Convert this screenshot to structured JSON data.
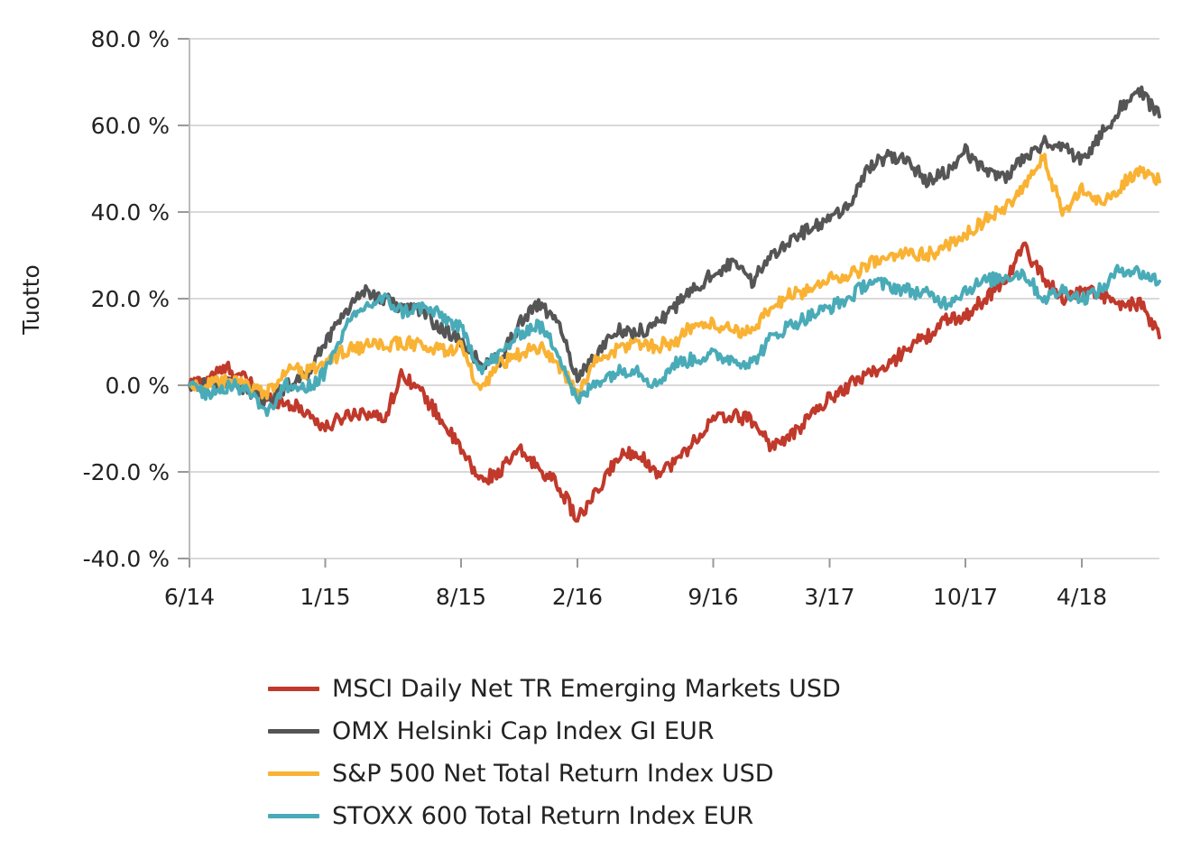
{
  "chart_data": {
    "type": "line",
    "title": "",
    "ylabel": "Tuotto",
    "xlabel": "",
    "ylim": [
      -40,
      80
    ],
    "y_ticks": [
      80,
      60,
      40,
      20,
      0,
      -20,
      -40
    ],
    "y_tick_labels": [
      "80.0 %",
      "60.0 %",
      "40.0 %",
      "20.0 %",
      "0.0 %",
      "-20.0 %",
      "-40.0 %"
    ],
    "x_ticks": [
      "6/14",
      "1/15",
      "8/15",
      "2/16",
      "9/16",
      "3/17",
      "10/17",
      "4/18"
    ],
    "x_tick_index": [
      0,
      7,
      14,
      20,
      27,
      33,
      40,
      46
    ],
    "x_end_index": 50,
    "x_range": [
      "6/14",
      "8/18"
    ],
    "grid": "horizontal",
    "legend_position": "bottom",
    "series": [
      {
        "name": "MSCI Daily Net TR Emerging Markets USD",
        "color": "#c0392b",
        "points": [
          [
            0,
            0
          ],
          [
            1,
            2
          ],
          [
            2,
            4
          ],
          [
            3,
            1
          ],
          [
            4,
            -3
          ],
          [
            5,
            -4
          ],
          [
            6,
            -6
          ],
          [
            7,
            -10
          ],
          [
            8,
            -7
          ],
          [
            9,
            -6
          ],
          [
            10,
            -8
          ],
          [
            11,
            3
          ],
          [
            12,
            -2
          ],
          [
            13,
            -8
          ],
          [
            14,
            -15
          ],
          [
            15,
            -22
          ],
          [
            16,
            -20
          ],
          [
            17,
            -15
          ],
          [
            18,
            -19
          ],
          [
            19,
            -23
          ],
          [
            20,
            -31
          ],
          [
            21,
            -25
          ],
          [
            22,
            -17
          ],
          [
            23,
            -15
          ],
          [
            24,
            -20
          ],
          [
            25,
            -18
          ],
          [
            26,
            -13
          ],
          [
            27,
            -8
          ],
          [
            28,
            -7
          ],
          [
            29,
            -8
          ],
          [
            30,
            -14
          ],
          [
            31,
            -12
          ],
          [
            32,
            -7
          ],
          [
            33,
            -3
          ],
          [
            34,
            0
          ],
          [
            35,
            3
          ],
          [
            36,
            4
          ],
          [
            37,
            9
          ],
          [
            38,
            11
          ],
          [
            39,
            15
          ],
          [
            40,
            16
          ],
          [
            41,
            20
          ],
          [
            42,
            24
          ],
          [
            43,
            32
          ],
          [
            44,
            25
          ],
          [
            45,
            20
          ],
          [
            46,
            22
          ],
          [
            47,
            21
          ],
          [
            48,
            18
          ],
          [
            49,
            19
          ],
          [
            50,
            11
          ]
        ]
      },
      {
        "name": "OMX Helsinki Cap Index GI EUR",
        "color": "#555555",
        "points": [
          [
            0,
            0
          ],
          [
            1,
            0
          ],
          [
            2,
            1
          ],
          [
            3,
            -1
          ],
          [
            4,
            -4
          ],
          [
            5,
            0
          ],
          [
            6,
            2
          ],
          [
            7,
            10
          ],
          [
            8,
            17
          ],
          [
            9,
            22
          ],
          [
            10,
            20
          ],
          [
            11,
            18
          ],
          [
            12,
            17
          ],
          [
            13,
            13
          ],
          [
            14,
            10
          ],
          [
            15,
            5
          ],
          [
            16,
            6
          ],
          [
            17,
            14
          ],
          [
            18,
            19
          ],
          [
            19,
            14
          ],
          [
            20,
            2
          ],
          [
            21,
            7
          ],
          [
            22,
            13
          ],
          [
            23,
            12
          ],
          [
            24,
            14
          ],
          [
            25,
            18
          ],
          [
            26,
            22
          ],
          [
            27,
            26
          ],
          [
            28,
            28
          ],
          [
            29,
            24
          ],
          [
            30,
            30
          ],
          [
            31,
            34
          ],
          [
            32,
            36
          ],
          [
            33,
            38
          ],
          [
            34,
            42
          ],
          [
            35,
            50
          ],
          [
            36,
            53
          ],
          [
            37,
            52
          ],
          [
            38,
            47
          ],
          [
            39,
            49
          ],
          [
            40,
            54
          ],
          [
            41,
            50
          ],
          [
            42,
            48
          ],
          [
            43,
            52
          ],
          [
            44,
            56
          ],
          [
            45,
            55
          ],
          [
            46,
            52
          ],
          [
            47,
            58
          ],
          [
            48,
            64
          ],
          [
            49,
            68
          ],
          [
            50,
            62
          ]
        ]
      },
      {
        "name": "S&P 500 Net Total Return Index USD",
        "color": "#f9b233",
        "points": [
          [
            0,
            0
          ],
          [
            1,
            0
          ],
          [
            2,
            1
          ],
          [
            3,
            0
          ],
          [
            4,
            -2
          ],
          [
            5,
            4
          ],
          [
            6,
            3
          ],
          [
            7,
            5
          ],
          [
            8,
            8
          ],
          [
            9,
            9
          ],
          [
            10,
            9
          ],
          [
            11,
            10
          ],
          [
            12,
            9
          ],
          [
            13,
            8
          ],
          [
            14,
            9
          ],
          [
            15,
            -2
          ],
          [
            16,
            5
          ],
          [
            17,
            7
          ],
          [
            18,
            9
          ],
          [
            19,
            5
          ],
          [
            20,
            -2
          ],
          [
            21,
            6
          ],
          [
            22,
            8
          ],
          [
            23,
            10
          ],
          [
            24,
            9
          ],
          [
            25,
            10
          ],
          [
            26,
            14
          ],
          [
            27,
            14
          ],
          [
            28,
            13
          ],
          [
            29,
            12
          ],
          [
            30,
            18
          ],
          [
            31,
            21
          ],
          [
            32,
            22
          ],
          [
            33,
            25
          ],
          [
            34,
            25
          ],
          [
            35,
            28
          ],
          [
            36,
            29
          ],
          [
            37,
            31
          ],
          [
            38,
            30
          ],
          [
            39,
            32
          ],
          [
            40,
            35
          ],
          [
            41,
            38
          ],
          [
            42,
            41
          ],
          [
            43,
            45
          ],
          [
            44,
            53
          ],
          [
            45,
            40
          ],
          [
            46,
            45
          ],
          [
            47,
            42
          ],
          [
            48,
            46
          ],
          [
            49,
            50
          ],
          [
            50,
            47
          ]
        ]
      },
      {
        "name": "STOXX 600 Total Return Index EUR",
        "color": "#4aabb8",
        "points": [
          [
            0,
            0
          ],
          [
            1,
            -2
          ],
          [
            2,
            0
          ],
          [
            3,
            -1
          ],
          [
            4,
            -6
          ],
          [
            5,
            0
          ],
          [
            6,
            -1
          ],
          [
            7,
            3
          ],
          [
            8,
            13
          ],
          [
            9,
            18
          ],
          [
            10,
            20
          ],
          [
            11,
            17
          ],
          [
            12,
            18
          ],
          [
            13,
            16
          ],
          [
            14,
            13
          ],
          [
            15,
            4
          ],
          [
            16,
            7
          ],
          [
            17,
            12
          ],
          [
            18,
            14
          ],
          [
            19,
            8
          ],
          [
            20,
            -4
          ],
          [
            21,
            1
          ],
          [
            22,
            3
          ],
          [
            23,
            4
          ],
          [
            24,
            0
          ],
          [
            25,
            5
          ],
          [
            26,
            6
          ],
          [
            27,
            7
          ],
          [
            28,
            6
          ],
          [
            29,
            5
          ],
          [
            30,
            11
          ],
          [
            31,
            14
          ],
          [
            32,
            16
          ],
          [
            33,
            18
          ],
          [
            34,
            20
          ],
          [
            35,
            24
          ],
          [
            36,
            23
          ],
          [
            37,
            22
          ],
          [
            38,
            21
          ],
          [
            39,
            19
          ],
          [
            40,
            22
          ],
          [
            41,
            24
          ],
          [
            42,
            25
          ],
          [
            43,
            26
          ],
          [
            44,
            20
          ],
          [
            45,
            22
          ],
          [
            46,
            20
          ],
          [
            47,
            22
          ],
          [
            48,
            27
          ],
          [
            49,
            26
          ],
          [
            50,
            24
          ]
        ]
      }
    ]
  }
}
